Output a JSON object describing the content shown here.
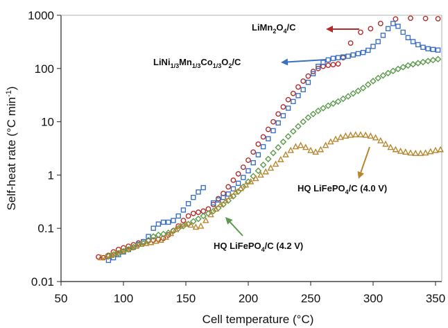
{
  "chart_data": {
    "type": "scatter",
    "xlabel": "Cell temperature (°C)",
    "ylabel": "Self-heat rate (°C min",
    "ylabel_sup": "-1",
    "ylabel_end": ")",
    "xlim": [
      50,
      355
    ],
    "ylim": [
      0.01,
      1000
    ],
    "yscale": "log",
    "grid": false,
    "x_ticks": [
      50,
      100,
      150,
      200,
      250,
      300,
      350
    ],
    "y_ticks": [
      0.01,
      0.1,
      1,
      10,
      100,
      1000
    ],
    "y_tick_labels": [
      "0.01",
      "0.1",
      "1",
      "10",
      "100",
      "1000"
    ],
    "series": [
      {
        "color": "#b22b2b",
        "marker": "circle",
        "points": [
          [
            80,
            0.029
          ],
          [
            84,
            0.028
          ],
          [
            88,
            0.031
          ],
          [
            92,
            0.036
          ],
          [
            96,
            0.04
          ],
          [
            100,
            0.043
          ],
          [
            104,
            0.046
          ],
          [
            108,
            0.049
          ],
          [
            112,
            0.053
          ],
          [
            116,
            0.056
          ],
          [
            120,
            0.058
          ],
          [
            124,
            0.06
          ],
          [
            128,
            0.062
          ],
          [
            132,
            0.065
          ],
          [
            136,
            0.075
          ],
          [
            140,
            0.09
          ],
          [
            144,
            0.11
          ],
          [
            148,
            0.14
          ],
          [
            152,
            0.17
          ],
          [
            156,
            0.19
          ],
          [
            160,
            0.2
          ],
          [
            164,
            0.21
          ],
          [
            168,
            0.23
          ],
          [
            172,
            0.28
          ],
          [
            176,
            0.36
          ],
          [
            180,
            0.45
          ],
          [
            184,
            0.6
          ],
          [
            188,
            0.8
          ],
          [
            192,
            1.05
          ],
          [
            196,
            1.4
          ],
          [
            200,
            1.9
          ],
          [
            204,
            2.7
          ],
          [
            208,
            3.8
          ],
          [
            212,
            5.2
          ],
          [
            216,
            7.2
          ],
          [
            220,
            10.0
          ],
          [
            224,
            14.0
          ],
          [
            228,
            19.0
          ],
          [
            232,
            26.0
          ],
          [
            236,
            34.0
          ],
          [
            240,
            45.0
          ],
          [
            244,
            58.0
          ],
          [
            248,
            72.0
          ],
          [
            252,
            88.0
          ],
          [
            256,
            100
          ],
          [
            260,
            110
          ],
          [
            264,
            115
          ],
          [
            268,
            118
          ],
          [
            272,
            122
          ],
          [
            276,
            160
          ],
          [
            282,
            300
          ],
          [
            290,
            480
          ],
          [
            298,
            560
          ],
          [
            306,
            700
          ],
          [
            318,
            850
          ],
          [
            330,
            880
          ],
          [
            342,
            870
          ],
          [
            352,
            860
          ]
        ]
      },
      {
        "color": "#3a6fc4",
        "marker": "square",
        "points": [
          [
            88,
            0.025
          ],
          [
            92,
            0.028
          ],
          [
            96,
            0.032
          ],
          [
            100,
            0.036
          ],
          [
            104,
            0.04
          ],
          [
            108,
            0.044
          ],
          [
            112,
            0.05
          ],
          [
            116,
            0.056
          ],
          [
            120,
            0.07
          ],
          [
            124,
            0.1
          ],
          [
            128,
            0.12
          ],
          [
            132,
            0.13
          ],
          [
            136,
            0.13
          ],
          [
            140,
            0.14
          ],
          [
            144,
            0.17
          ],
          [
            148,
            0.22
          ],
          [
            152,
            0.29
          ],
          [
            156,
            0.38
          ],
          [
            160,
            0.48
          ],
          [
            164,
            0.58
          ],
          [
            172,
            0.3
          ],
          [
            176,
            0.34
          ],
          [
            180,
            0.38
          ],
          [
            184,
            0.44
          ],
          [
            188,
            0.55
          ],
          [
            192,
            0.7
          ],
          [
            196,
            0.9
          ],
          [
            200,
            1.2
          ],
          [
            204,
            1.7
          ],
          [
            208,
            2.4
          ],
          [
            212,
            3.4
          ],
          [
            216,
            4.8
          ],
          [
            220,
            6.8
          ],
          [
            224,
            9.5
          ],
          [
            228,
            13.0
          ],
          [
            232,
            18.0
          ],
          [
            236,
            24.0
          ],
          [
            240,
            31.0
          ],
          [
            244,
            40.0
          ],
          [
            248,
            55.0
          ],
          [
            252,
            80.0
          ],
          [
            256,
            110
          ],
          [
            260,
            130
          ],
          [
            264,
            145
          ],
          [
            268,
            155
          ],
          [
            272,
            160
          ],
          [
            276,
            165
          ],
          [
            280,
            170
          ],
          [
            284,
            180
          ],
          [
            288,
            190
          ],
          [
            292,
            200
          ],
          [
            296,
            220
          ],
          [
            300,
            260
          ],
          [
            304,
            320
          ],
          [
            308,
            420
          ],
          [
            312,
            560
          ],
          [
            316,
            700
          ],
          [
            320,
            620
          ],
          [
            324,
            480
          ],
          [
            328,
            380
          ],
          [
            332,
            320
          ],
          [
            336,
            280
          ],
          [
            340,
            250
          ],
          [
            344,
            235
          ],
          [
            348,
            228
          ],
          [
            352,
            222
          ]
        ]
      },
      {
        "color": "#5a9a4a",
        "marker": "diamond",
        "points": [
          [
            88,
            0.03
          ],
          [
            92,
            0.032
          ],
          [
            96,
            0.034
          ],
          [
            100,
            0.037
          ],
          [
            104,
            0.04
          ],
          [
            108,
            0.044
          ],
          [
            112,
            0.048
          ],
          [
            116,
            0.052
          ],
          [
            120,
            0.06
          ],
          [
            124,
            0.07
          ],
          [
            128,
            0.075
          ],
          [
            132,
            0.078
          ],
          [
            136,
            0.082
          ],
          [
            140,
            0.09
          ],
          [
            144,
            0.1
          ],
          [
            148,
            0.11
          ],
          [
            152,
            0.12
          ],
          [
            156,
            0.135
          ],
          [
            160,
            0.15
          ],
          [
            164,
            0.17
          ],
          [
            168,
            0.19
          ],
          [
            172,
            0.21
          ],
          [
            176,
            0.24
          ],
          [
            180,
            0.28
          ],
          [
            184,
            0.33
          ],
          [
            188,
            0.4
          ],
          [
            192,
            0.49
          ],
          [
            196,
            0.6
          ],
          [
            200,
            0.75
          ],
          [
            204,
            0.95
          ],
          [
            208,
            1.2
          ],
          [
            212,
            1.55
          ],
          [
            216,
            2.0
          ],
          [
            220,
            2.6
          ],
          [
            224,
            3.3
          ],
          [
            228,
            4.2
          ],
          [
            232,
            5.3
          ],
          [
            236,
            6.6
          ],
          [
            240,
            8.2
          ],
          [
            244,
            10.0
          ],
          [
            248,
            12.0
          ],
          [
            252,
            14.0
          ],
          [
            256,
            16.0
          ],
          [
            260,
            18.0
          ],
          [
            264,
            20.0
          ],
          [
            268,
            22.0
          ],
          [
            272,
            24.0
          ],
          [
            276,
            27.0
          ],
          [
            280,
            30.0
          ],
          [
            284,
            34.0
          ],
          [
            288,
            38.0
          ],
          [
            292,
            43.0
          ],
          [
            296,
            50.0
          ],
          [
            300,
            58.0
          ],
          [
            304,
            66.0
          ],
          [
            308,
            74.0
          ],
          [
            312,
            82.0
          ],
          [
            316,
            90.0
          ],
          [
            320,
            98.0
          ],
          [
            324,
            106
          ],
          [
            328,
            114
          ],
          [
            332,
            120
          ],
          [
            336,
            126
          ],
          [
            340,
            132
          ],
          [
            344,
            138
          ],
          [
            348,
            144
          ],
          [
            352,
            150
          ]
        ]
      },
      {
        "color": "#b8862e",
        "marker": "triangle",
        "points": [
          [
            82,
            0.028
          ],
          [
            86,
            0.029
          ],
          [
            90,
            0.031
          ],
          [
            94,
            0.034
          ],
          [
            98,
            0.037
          ],
          [
            102,
            0.04
          ],
          [
            106,
            0.043
          ],
          [
            110,
            0.046
          ],
          [
            114,
            0.05
          ],
          [
            118,
            0.052
          ],
          [
            122,
            0.054
          ],
          [
            126,
            0.057
          ],
          [
            130,
            0.06
          ],
          [
            134,
            0.068
          ],
          [
            138,
            0.08
          ],
          [
            142,
            0.095
          ],
          [
            146,
            0.11
          ],
          [
            150,
            0.12
          ],
          [
            154,
            0.115
          ],
          [
            158,
            0.105
          ],
          [
            162,
            0.11
          ],
          [
            166,
            0.14
          ],
          [
            170,
            0.18
          ],
          [
            174,
            0.23
          ],
          [
            178,
            0.28
          ],
          [
            182,
            0.33
          ],
          [
            186,
            0.4
          ],
          [
            190,
            0.48
          ],
          [
            194,
            0.56
          ],
          [
            198,
            0.65
          ],
          [
            202,
            0.75
          ],
          [
            206,
            0.86
          ],
          [
            210,
            1.0
          ],
          [
            214,
            1.15
          ],
          [
            218,
            1.35
          ],
          [
            222,
            1.6
          ],
          [
            226,
            1.95
          ],
          [
            230,
            2.4
          ],
          [
            234,
            2.9
          ],
          [
            238,
            3.4
          ],
          [
            242,
            3.6
          ],
          [
            246,
            3.3
          ],
          [
            250,
            2.9
          ],
          [
            254,
            2.7
          ],
          [
            258,
            3.0
          ],
          [
            262,
            3.6
          ],
          [
            266,
            4.2
          ],
          [
            270,
            4.7
          ],
          [
            274,
            5.1
          ],
          [
            278,
            5.4
          ],
          [
            282,
            5.6
          ],
          [
            286,
            5.7
          ],
          [
            290,
            5.7
          ],
          [
            294,
            5.6
          ],
          [
            298,
            5.4
          ],
          [
            302,
            5.0
          ],
          [
            306,
            4.4
          ],
          [
            310,
            3.8
          ],
          [
            314,
            3.3
          ],
          [
            318,
            3.0
          ],
          [
            322,
            2.8
          ],
          [
            326,
            2.7
          ],
          [
            330,
            2.6
          ],
          [
            334,
            2.55
          ],
          [
            338,
            2.55
          ],
          [
            342,
            2.6
          ],
          [
            346,
            2.75
          ],
          [
            350,
            2.9
          ],
          [
            354,
            3.0
          ]
        ]
      }
    ],
    "annotations": [
      {
        "id": "limn2o4",
        "parts": [
          [
            "LiMn",
            ""
          ],
          [
            "2",
            "sub"
          ],
          [
            "O",
            ""
          ],
          [
            "4",
            "sub"
          ],
          [
            "/C",
            ""
          ]
        ],
        "text_x": 363,
        "text_y": 44,
        "arrow_color": "#b22b2b",
        "arrow_from": [
          518,
          42
        ],
        "arrow_to": [
          470,
          42
        ]
      },
      {
        "id": "nmc",
        "parts": [
          [
            "LiNi",
            ""
          ],
          [
            "1/3",
            "sub"
          ],
          [
            "Mn",
            ""
          ],
          [
            "1/3",
            "sub"
          ],
          [
            "Co",
            ""
          ],
          [
            "1/3",
            "sub"
          ],
          [
            "O",
            ""
          ],
          [
            "2",
            "sub"
          ],
          [
            "/C",
            ""
          ]
        ],
        "text_x": 221,
        "text_y": 94,
        "arrow_color": "#3a6fc4",
        "arrow_from": [
          470,
          86
        ],
        "arrow_to": [
          405,
          90
        ]
      },
      {
        "id": "lfp40",
        "parts": [
          [
            "HQ LiFePO",
            ""
          ],
          [
            "4",
            "sub"
          ],
          [
            "/C (4.0 V)",
            ""
          ]
        ],
        "text_x": 429,
        "text_y": 276,
        "arrow_color": "#b8862e",
        "arrow_from": [
          533,
          212
        ],
        "arrow_to": [
          517,
          258
        ]
      },
      {
        "id": "lfp42",
        "parts": [
          [
            "HQ LiFePO",
            ""
          ],
          [
            "4",
            "sub"
          ],
          [
            "/C (4.2 V)",
            ""
          ]
        ],
        "text_x": 308,
        "text_y": 359,
        "arrow_color": "#5a9a4a",
        "arrow_from": [
          350,
          340
        ],
        "arrow_to": [
          325,
          313
        ]
      }
    ]
  }
}
